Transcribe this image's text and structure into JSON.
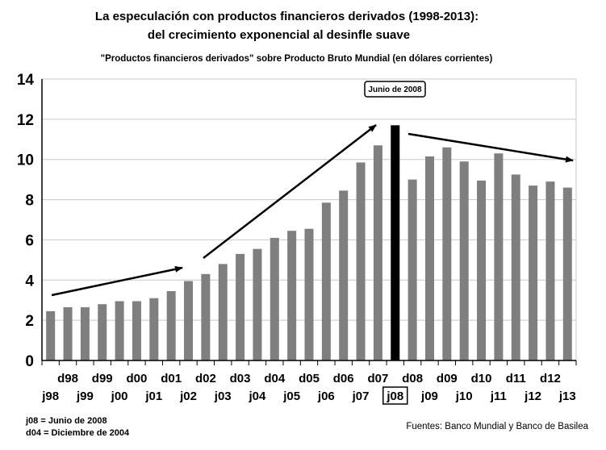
{
  "title_line1": "La especulación con productos financieros derivados (1998-2013):",
  "title_line2": "del crecimiento exponencial al desinfle suave",
  "subtitle": "\"Productos financieros derivados\" sobre Producto Bruto Mundial (en dólares corrientes)",
  "notes": {
    "line1": "j08 = Junio de 2008",
    "line2": "d04 = Diciembre de 2004"
  },
  "source": "Fuentes: Banco Mundial y Banco de Basilea",
  "colors": {
    "bar": "#7f7f7f",
    "highlight_bar": "#000000",
    "grid": "#c8c8c8"
  },
  "chart_data": {
    "type": "bar",
    "ylim": [
      0,
      14
    ],
    "yticks": [
      0,
      2,
      4,
      6,
      8,
      10,
      12,
      14
    ],
    "grid": true,
    "categories": [
      "j98",
      "d98",
      "j99",
      "d99",
      "j00",
      "d00",
      "j01",
      "d01",
      "j02",
      "d02",
      "j03",
      "d03",
      "j04",
      "d04",
      "j05",
      "d05",
      "j06",
      "d06",
      "j07",
      "d07",
      "j08",
      "d08",
      "j09",
      "d09",
      "j10",
      "d10",
      "j11",
      "d11",
      "j12",
      "d12",
      "j13"
    ],
    "values": [
      2.45,
      2.65,
      2.65,
      2.8,
      2.95,
      2.95,
      3.1,
      3.45,
      3.95,
      4.3,
      4.8,
      5.3,
      5.55,
      6.1,
      6.45,
      6.55,
      7.85,
      8.45,
      9.85,
      10.7,
      11.7,
      9.0,
      10.15,
      10.6,
      9.9,
      8.95,
      10.3,
      9.25,
      8.7,
      8.9,
      8.6
    ],
    "highlight": "j08",
    "callout": "Junio de 2008",
    "top_row_labels": [
      "d98",
      "d99",
      "d00",
      "d01",
      "d02",
      "d03",
      "d04",
      "d05",
      "d06",
      "d07",
      "d08",
      "d09",
      "d10",
      "d11",
      "d12"
    ],
    "bottom_row_labels": [
      "j98",
      "j99",
      "j00",
      "j01",
      "j02",
      "j03",
      "j04",
      "j05",
      "j06",
      "j07",
      "j08",
      "j09",
      "j10",
      "j11",
      "j12",
      "j13"
    ]
  }
}
